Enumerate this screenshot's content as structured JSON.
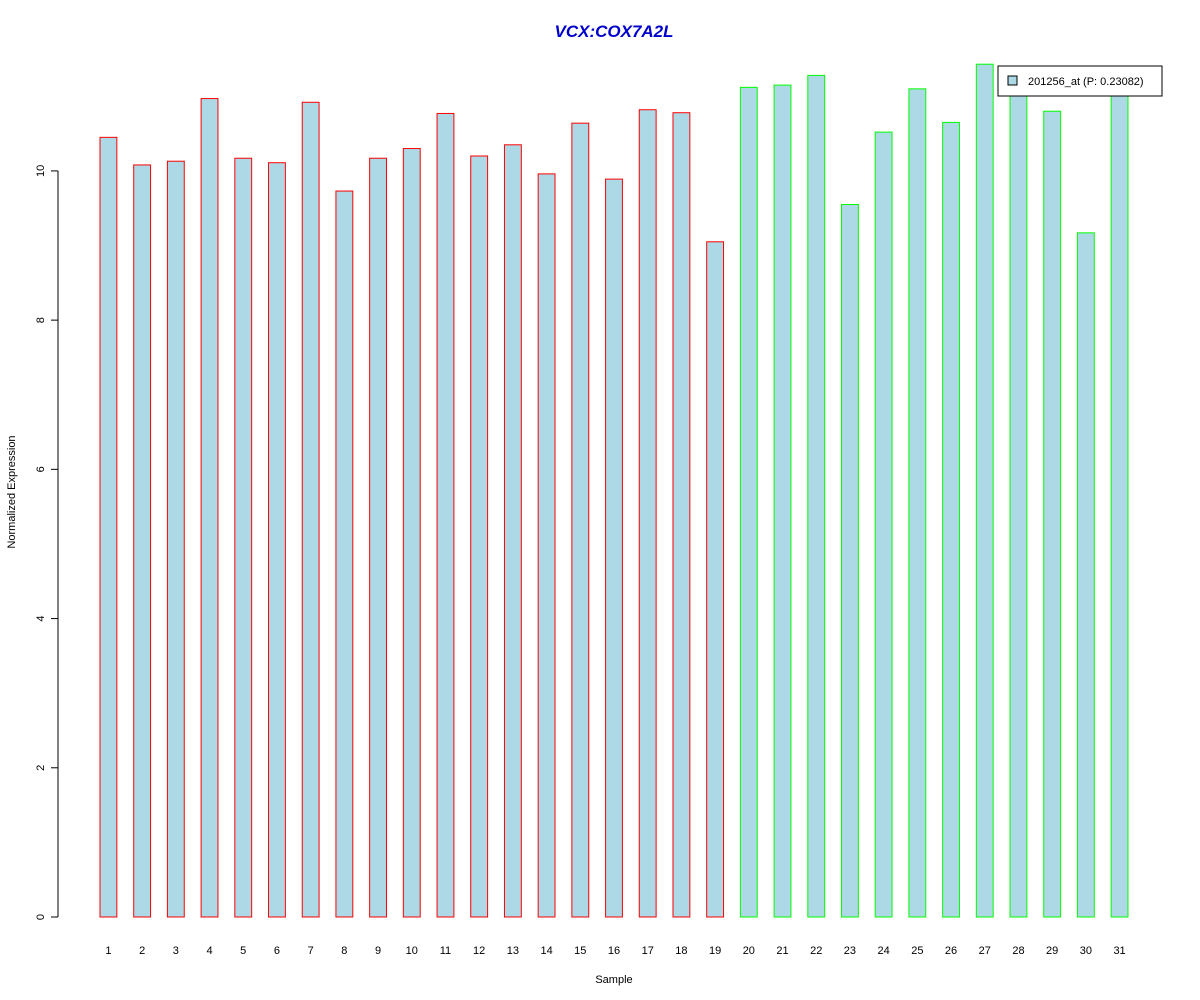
{
  "chart_data": {
    "type": "bar",
    "title": "VCX:COX7A2L",
    "xlabel": "Sample",
    "ylabel": "Normalized Expression",
    "ylim": [
      0,
      11.5
    ],
    "yticks": [
      0,
      2,
      4,
      6,
      8,
      10
    ],
    "categories": [
      "1",
      "2",
      "3",
      "4",
      "5",
      "6",
      "7",
      "8",
      "9",
      "10",
      "11",
      "12",
      "13",
      "14",
      "15",
      "16",
      "17",
      "18",
      "19",
      "20",
      "21",
      "22",
      "23",
      "24",
      "25",
      "26",
      "27",
      "28",
      "29",
      "30",
      "31"
    ],
    "series": [
      {
        "name": "201256_at (P: 0.23082)",
        "values": [
          10.45,
          10.08,
          10.13,
          10.97,
          10.17,
          10.11,
          10.92,
          9.73,
          10.17,
          10.3,
          10.77,
          10.2,
          10.35,
          9.96,
          10.64,
          9.89,
          10.82,
          10.78,
          9.05,
          11.12,
          11.15,
          11.28,
          9.55,
          10.52,
          11.1,
          10.65,
          11.43,
          11.05,
          10.8,
          9.17,
          11.05
        ],
        "fill": "#add8e6",
        "group_colors": [
          "#ff0000",
          "#ff0000",
          "#ff0000",
          "#ff0000",
          "#ff0000",
          "#ff0000",
          "#ff0000",
          "#ff0000",
          "#ff0000",
          "#ff0000",
          "#ff0000",
          "#ff0000",
          "#ff0000",
          "#ff0000",
          "#ff0000",
          "#ff0000",
          "#ff0000",
          "#ff0000",
          "#ff0000",
          "#00ff00",
          "#00ff00",
          "#00ff00",
          "#00ff00",
          "#00ff00",
          "#00ff00",
          "#00ff00",
          "#00ff00",
          "#00ff00",
          "#00ff00",
          "#00ff00",
          "#00ff00"
        ]
      }
    ],
    "legend": {
      "label": "201256_at (P: 0.23082)",
      "position": "top-right"
    },
    "grid": false
  },
  "colors": {
    "title": "#0000cd",
    "bar_fill": "#add8e6",
    "group1_border": "#ff0000",
    "group2_border": "#00ff00"
  }
}
